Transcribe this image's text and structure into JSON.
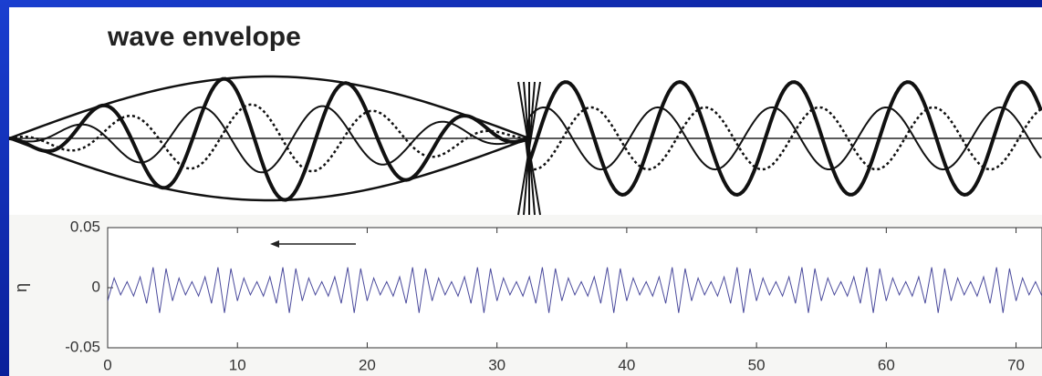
{
  "title": "wave envelope",
  "chart_data": {
    "type": "line",
    "ylabel": "η",
    "x": [
      0,
      0.5,
      1,
      1.5,
      2,
      2.5,
      3,
      3.5,
      4,
      4.5,
      5,
      5.5,
      6,
      6.5,
      7,
      7.5,
      8,
      8.5,
      9,
      9.5,
      10,
      10.5,
      11,
      11.5,
      12,
      12.5,
      13,
      13.5,
      14,
      14.5,
      15,
      15.5,
      16,
      16.5,
      17,
      17.5,
      18,
      18.5,
      19,
      19.5,
      20,
      20.5,
      21,
      21.5,
      22,
      22.5,
      23,
      23.5,
      24,
      24.5,
      25,
      25.5,
      26,
      26.5,
      27,
      27.5,
      28,
      28.5,
      29,
      29.5,
      30,
      30.5,
      31,
      31.5,
      32,
      32.5,
      33,
      33.5,
      34,
      34.5,
      35,
      35.5,
      36,
      36.5,
      37,
      37.5,
      38,
      38.5,
      39,
      39.5,
      40,
      40.5,
      41,
      41.5,
      42,
      42.5,
      43,
      43.5,
      44,
      44.5,
      45,
      45.5,
      46,
      46.5,
      47,
      47.5,
      48,
      48.5,
      49,
      49.5,
      50,
      50.5,
      51,
      51.5,
      52,
      52.5,
      53,
      53.5,
      54,
      54.5,
      55,
      55.5,
      56,
      56.5,
      57,
      57.5,
      58,
      58.5,
      59,
      59.5,
      60,
      60.5,
      61,
      61.5,
      62,
      62.5,
      63,
      63.5,
      64,
      64.5,
      65,
      65.5,
      66,
      66.5,
      67,
      67.5,
      68,
      68.5,
      69,
      69.5,
      70,
      70.5,
      71,
      71.5,
      72
    ],
    "series": [
      {
        "color": "#4a4a9c",
        "values": [
          -0.011,
          0.008,
          -0.006,
          0.005,
          -0.007,
          0.009,
          -0.013,
          0.017,
          -0.021,
          0.016,
          -0.011,
          0.008,
          -0.006,
          0.005,
          -0.007,
          0.009,
          -0.013,
          0.017,
          -0.021,
          0.016,
          -0.011,
          0.008,
          -0.006,
          0.005,
          -0.007,
          0.009,
          -0.013,
          0.017,
          -0.021,
          0.016,
          -0.011,
          0.008,
          -0.006,
          0.005,
          -0.007,
          0.009,
          -0.013,
          0.017,
          -0.021,
          0.016,
          -0.011,
          0.008,
          -0.006,
          0.005,
          -0.007,
          0.009,
          -0.013,
          0.017,
          -0.021,
          0.016,
          -0.011,
          0.008,
          -0.006,
          0.005,
          -0.007,
          0.009,
          -0.013,
          0.017,
          -0.021,
          0.016,
          -0.011,
          0.008,
          -0.006,
          0.005,
          -0.007,
          0.009,
          -0.013,
          0.017,
          -0.021,
          0.016,
          -0.011,
          0.008,
          -0.006,
          0.005,
          -0.007,
          0.009,
          -0.013,
          0.017,
          -0.021,
          0.016,
          -0.011,
          0.008,
          -0.006,
          0.005,
          -0.007,
          0.009,
          -0.013,
          0.017,
          -0.021,
          0.016,
          -0.011,
          0.008,
          -0.006,
          0.005,
          -0.007,
          0.009,
          -0.013,
          0.017,
          -0.021,
          0.016,
          -0.011,
          0.008,
          -0.006,
          0.005,
          -0.007,
          0.009,
          -0.013,
          0.017,
          -0.021,
          0.016,
          -0.011,
          0.008,
          -0.006,
          0.005,
          -0.007,
          0.009,
          -0.013,
          0.017,
          -0.021,
          0.016,
          -0.011,
          0.008,
          -0.006,
          0.005,
          -0.007,
          0.009,
          -0.013,
          0.017,
          -0.021,
          0.016,
          -0.011,
          0.008,
          -0.006,
          0.005,
          -0.007,
          0.009,
          -0.013,
          0.017,
          -0.021,
          0.016,
          -0.011,
          0.008,
          -0.006,
          0.005,
          -0.007
        ]
      }
    ],
    "xlim": [
      0,
      72
    ],
    "xticks": [
      0,
      10,
      20,
      30,
      40,
      50,
      60,
      70
    ],
    "ylim": [
      -0.05,
      0.05
    ],
    "yticks": [
      -0.05,
      0,
      0.05
    ]
  }
}
